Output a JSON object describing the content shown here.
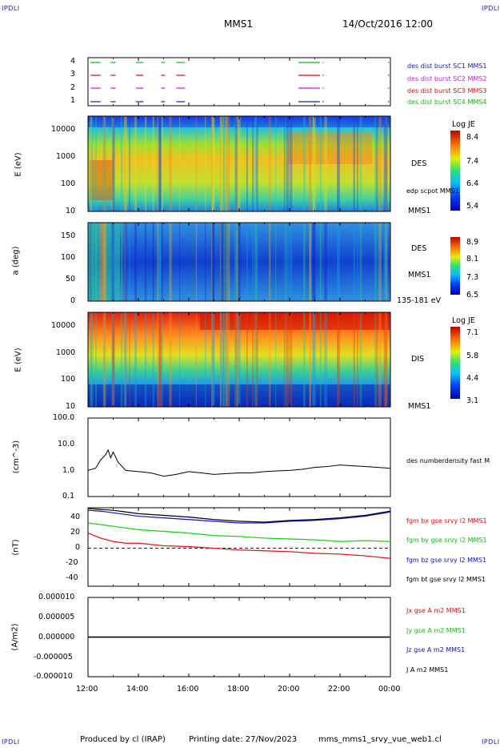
{
  "corner_labels": [
    "IPDLI",
    "IPDLI",
    "IPDLI",
    "IPDLI"
  ],
  "header": {
    "title": "MMS1",
    "date": "14/Oct/2016 12:00"
  },
  "footer": {
    "producer": "Produced by cl (IRAP)",
    "printing": "Printing date: 27/Nov/2023",
    "script": "mms_mms1_srvy_vue_web1.cl"
  },
  "time_axis": [
    "12:00",
    "14:00",
    "16:00",
    "18:00",
    "20:00",
    "22:00",
    "00:00"
  ],
  "chart_data": [
    {
      "type": "line",
      "title": "burst availability",
      "yticks": [
        "4",
        "3",
        "2",
        "1"
      ],
      "series": [
        {
          "name": "des dist burst SC1 MMS1",
          "color": "#1a1ab4"
        },
        {
          "name": "des dist burst SC2 MMS2",
          "color": "#c81ec8"
        },
        {
          "name": "des dist burst SC3 MMS3",
          "color": "#c81414"
        },
        {
          "name": "des dist burst SC4 MMS4",
          "color": "#14b414"
        }
      ],
      "segments_hours": [
        [
          12.1,
          12.5
        ],
        [
          12.9,
          13.1
        ],
        [
          13.9,
          14.2
        ],
        [
          14.9,
          15.05
        ],
        [
          15.5,
          15.85
        ],
        [
          20.35,
          21.2
        ],
        [
          21.3,
          21.35
        ],
        [
          23.9,
          23.95
        ]
      ]
    },
    {
      "type": "heatmap",
      "ylabel": "E (eV)",
      "yticks": [
        "10000",
        "1000",
        "100",
        "10"
      ],
      "right_labels": [
        "DES",
        "edp scpot MMS1",
        "MMS1"
      ],
      "colorbar": {
        "title": "Log JE",
        "ticks": [
          "8.4",
          "7.4",
          "6.4",
          "5.4"
        ]
      }
    },
    {
      "type": "heatmap",
      "ylabel": "a (deg)",
      "yticks": [
        "150",
        "100",
        "50",
        "0"
      ],
      "right_labels": [
        "DES",
        "MMS1",
        "135-181 eV"
      ],
      "colorbar": {
        "title": "",
        "ticks": [
          "8.9",
          "8.1",
          "7.3",
          "6.5"
        ]
      }
    },
    {
      "type": "heatmap",
      "ylabel": "E (eV)",
      "yticks": [
        "10000",
        "1000",
        "100",
        "10"
      ],
      "right_labels": [
        "DIS",
        "MMS1"
      ],
      "colorbar": {
        "title": "Log JE",
        "ticks": [
          "7.1",
          "5.8",
          "4.4",
          "3.1"
        ]
      }
    },
    {
      "type": "line",
      "ylabel": "(cm^-3)",
      "yticks": [
        "100.0",
        "10.0",
        "1.0",
        "0.1"
      ],
      "ylim": [
        0.1,
        100
      ],
      "series": [
        {
          "name": "des numberdensity fast M",
          "color": "#000000",
          "x": [
            12.0,
            12.3,
            12.5,
            12.7,
            12.8,
            12.9,
            13.0,
            13.2,
            13.5,
            14.0,
            14.5,
            15.0,
            15.5,
            16.0,
            16.5,
            17.0,
            17.5,
            18.0,
            18.5,
            19.0,
            19.5,
            20.0,
            20.5,
            21.0,
            21.5,
            22.0,
            22.5,
            23.0,
            23.5,
            24.0
          ],
          "y": [
            1.0,
            1.2,
            2.5,
            4.0,
            6.0,
            3.0,
            5.0,
            2.0,
            1.0,
            0.9,
            0.8,
            0.6,
            0.7,
            0.9,
            0.8,
            0.7,
            0.75,
            0.8,
            0.8,
            0.9,
            0.95,
            1.0,
            1.1,
            1.3,
            1.4,
            1.6,
            1.5,
            1.4,
            1.3,
            1.2
          ]
        }
      ]
    },
    {
      "type": "line",
      "ylabel": "(nT)",
      "yticks": [
        "40",
        "20",
        "0",
        "-20",
        "-40"
      ],
      "ylim": [
        -45,
        48
      ],
      "series": [
        {
          "name": "fgm bx gse srvy l2 MMS1",
          "color": "#e01010",
          "x": [
            12,
            12.5,
            13,
            13.5,
            14,
            15,
            16,
            17,
            18,
            19,
            20,
            21,
            22,
            23,
            24
          ],
          "y": [
            18,
            12,
            8,
            6,
            6,
            3,
            2,
            0,
            -2,
            -3,
            -4,
            -6,
            -7,
            -9,
            -12
          ]
        },
        {
          "name": "fgm by gse srvy l2 MMS1",
          "color": "#10d010",
          "x": [
            12,
            12.5,
            13,
            13.5,
            14,
            15,
            16,
            17,
            18,
            19,
            20,
            21,
            22,
            23,
            24
          ],
          "y": [
            30,
            28,
            26,
            24,
            22,
            20,
            18,
            15,
            14,
            12,
            11,
            10,
            8,
            9,
            8
          ]
        },
        {
          "name": "fgm bz gse srvy l2 MMS1",
          "color": "#1010c8",
          "x": [
            12,
            12.5,
            13,
            13.5,
            14,
            15,
            16,
            17,
            18,
            19,
            20,
            21,
            22,
            23,
            24
          ],
          "y": [
            45,
            44,
            42,
            40,
            38,
            36,
            34,
            32,
            30,
            30,
            32,
            33,
            35,
            38,
            43
          ]
        },
        {
          "name": "fgm bt gse srvy l2 MMS1",
          "color": "#000000",
          "x": [
            12,
            12.5,
            13,
            13.5,
            14,
            15,
            16,
            17,
            18,
            19,
            20,
            21,
            22,
            23,
            24
          ],
          "y": [
            47,
            46,
            45,
            43,
            41,
            39,
            37,
            34,
            32,
            31,
            33,
            34,
            36,
            39,
            44
          ]
        }
      ]
    },
    {
      "type": "line",
      "ylabel": "(A/m2)",
      "yticks": [
        "0.000010",
        "0.000005",
        "0.000000",
        "-0.000005",
        "-0.000010"
      ],
      "ylim": [
        -1e-05,
        1e-05
      ],
      "series": [
        {
          "name": "Jx gse A m2 MMS1",
          "color": "#e01010",
          "x": [
            12,
            24
          ],
          "y": [
            0,
            0
          ]
        },
        {
          "name": "Jy gse A m2 MMS1",
          "color": "#10d010",
          "x": [
            12,
            24
          ],
          "y": [
            0,
            0
          ]
        },
        {
          "name": "Jz gse A m2 MMS1",
          "color": "#1010c8",
          "x": [
            12,
            24
          ],
          "y": [
            0,
            0
          ]
        },
        {
          "name": "J A m2 MMS1",
          "color": "#000000",
          "x": [
            12,
            24
          ],
          "y": [
            0,
            0
          ]
        }
      ]
    }
  ]
}
